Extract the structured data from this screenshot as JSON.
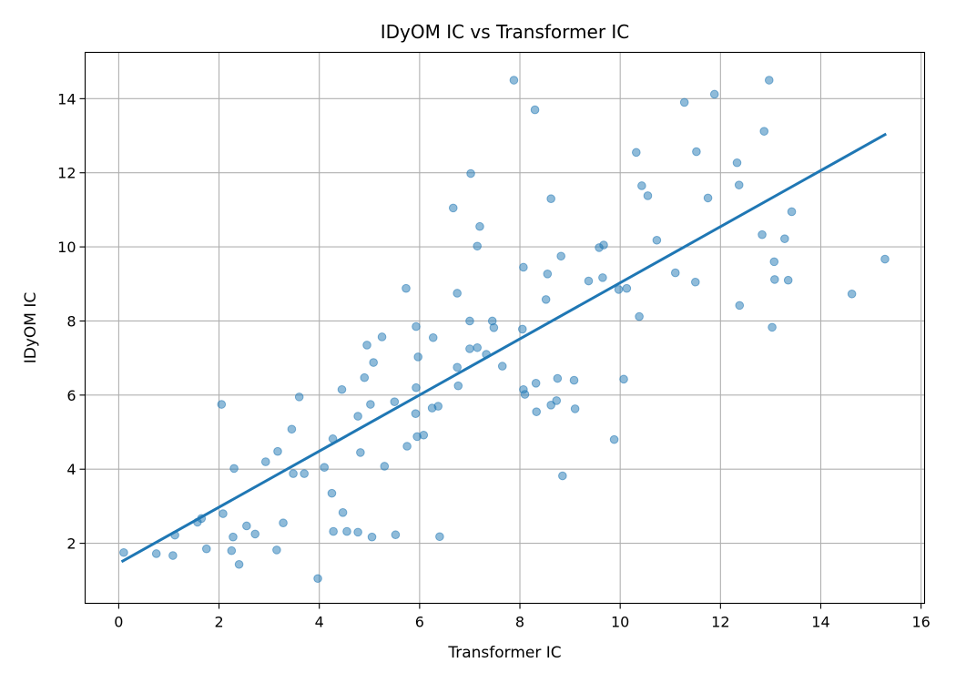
{
  "chart_data": {
    "type": "scatter",
    "title": "IDyOM IC vs Transformer IC",
    "xlabel": "Transformer IC",
    "ylabel": "IDyOM IC",
    "xlim": [
      -0.67,
      16.07
    ],
    "ylim": [
      0.38,
      15.25
    ],
    "xticks": [
      0,
      2,
      4,
      6,
      8,
      10,
      12,
      14,
      16
    ],
    "yticks": [
      2,
      4,
      6,
      8,
      10,
      12,
      14
    ],
    "grid": true,
    "legend": "none",
    "colors": {
      "points": "#1f77b4",
      "fit_line": "#1f77b4",
      "grid": "#b0b0b0"
    },
    "fit_line": {
      "x": [
        0.08,
        15.28
      ],
      "y": [
        1.52,
        13.03
      ]
    },
    "points": [
      [
        0.1,
        1.75
      ],
      [
        0.75,
        1.72
      ],
      [
        1.08,
        1.67
      ],
      [
        1.12,
        2.22
      ],
      [
        1.57,
        2.57
      ],
      [
        1.65,
        2.67
      ],
      [
        1.75,
        1.85
      ],
      [
        2.05,
        5.75
      ],
      [
        2.08,
        2.8
      ],
      [
        2.25,
        1.8
      ],
      [
        2.28,
        2.17
      ],
      [
        2.3,
        4.02
      ],
      [
        2.4,
        1.43
      ],
      [
        2.55,
        2.47
      ],
      [
        2.72,
        2.25
      ],
      [
        2.93,
        4.2
      ],
      [
        3.15,
        1.82
      ],
      [
        3.17,
        4.48
      ],
      [
        3.28,
        2.55
      ],
      [
        3.45,
        5.08
      ],
      [
        3.48,
        3.88
      ],
      [
        3.6,
        5.95
      ],
      [
        3.7,
        3.88
      ],
      [
        3.97,
        1.05
      ],
      [
        4.1,
        4.05
      ],
      [
        4.25,
        3.35
      ],
      [
        4.27,
        4.82
      ],
      [
        4.28,
        2.32
      ],
      [
        4.45,
        6.15
      ],
      [
        4.47,
        2.83
      ],
      [
        4.55,
        2.32
      ],
      [
        4.77,
        2.3
      ],
      [
        4.77,
        5.43
      ],
      [
        4.82,
        4.45
      ],
      [
        4.9,
        6.47
      ],
      [
        4.95,
        7.35
      ],
      [
        5.02,
        5.75
      ],
      [
        5.05,
        2.17
      ],
      [
        5.08,
        6.88
      ],
      [
        5.25,
        7.57
      ],
      [
        5.3,
        4.08
      ],
      [
        5.5,
        5.82
      ],
      [
        5.52,
        2.23
      ],
      [
        5.73,
        8.88
      ],
      [
        5.75,
        4.62
      ],
      [
        5.92,
        5.5
      ],
      [
        5.93,
        6.2
      ],
      [
        5.93,
        7.85
      ],
      [
        5.95,
        4.88
      ],
      [
        5.97,
        7.03
      ],
      [
        6.08,
        4.92
      ],
      [
        6.25,
        5.65
      ],
      [
        6.27,
        7.55
      ],
      [
        6.37,
        5.7
      ],
      [
        6.4,
        2.18
      ],
      [
        6.67,
        11.05
      ],
      [
        6.75,
        8.75
      ],
      [
        6.75,
        6.75
      ],
      [
        6.77,
        6.25
      ],
      [
        7.0,
        7.25
      ],
      [
        7.0,
        8.0
      ],
      [
        7.02,
        11.98
      ],
      [
        7.15,
        10.02
      ],
      [
        7.15,
        7.28
      ],
      [
        7.2,
        10.55
      ],
      [
        7.33,
        7.1
      ],
      [
        7.45,
        8.0
      ],
      [
        7.48,
        7.82
      ],
      [
        7.65,
        6.78
      ],
      [
        7.88,
        14.5
      ],
      [
        8.05,
        7.78
      ],
      [
        8.07,
        9.45
      ],
      [
        8.07,
        6.15
      ],
      [
        8.1,
        6.02
      ],
      [
        8.3,
        13.7
      ],
      [
        8.32,
        6.32
      ],
      [
        8.33,
        5.55
      ],
      [
        8.52,
        8.58
      ],
      [
        8.55,
        9.27
      ],
      [
        8.62,
        11.3
      ],
      [
        8.62,
        5.73
      ],
      [
        8.73,
        5.85
      ],
      [
        8.75,
        6.45
      ],
      [
        8.82,
        9.75
      ],
      [
        8.85,
        3.82
      ],
      [
        9.08,
        6.4
      ],
      [
        9.1,
        5.63
      ],
      [
        9.37,
        9.08
      ],
      [
        9.58,
        9.98
      ],
      [
        9.65,
        9.17
      ],
      [
        9.67,
        10.05
      ],
      [
        9.88,
        4.8
      ],
      [
        9.97,
        8.85
      ],
      [
        10.07,
        6.43
      ],
      [
        10.13,
        8.88
      ],
      [
        10.32,
        12.55
      ],
      [
        10.38,
        8.12
      ],
      [
        10.43,
        11.65
      ],
      [
        10.55,
        11.38
      ],
      [
        10.73,
        10.18
      ],
      [
        11.1,
        9.3
      ],
      [
        11.28,
        13.9
      ],
      [
        11.5,
        9.05
      ],
      [
        11.52,
        12.57
      ],
      [
        11.75,
        11.32
      ],
      [
        11.88,
        14.12
      ],
      [
        12.33,
        12.27
      ],
      [
        12.37,
        11.67
      ],
      [
        12.38,
        8.42
      ],
      [
        12.83,
        10.33
      ],
      [
        12.87,
        13.12
      ],
      [
        12.97,
        14.5
      ],
      [
        13.03,
        7.83
      ],
      [
        13.07,
        9.6
      ],
      [
        13.08,
        9.12
      ],
      [
        13.28,
        10.22
      ],
      [
        13.35,
        9.1
      ],
      [
        13.42,
        10.95
      ],
      [
        14.62,
        8.73
      ],
      [
        15.28,
        9.67
      ]
    ]
  }
}
